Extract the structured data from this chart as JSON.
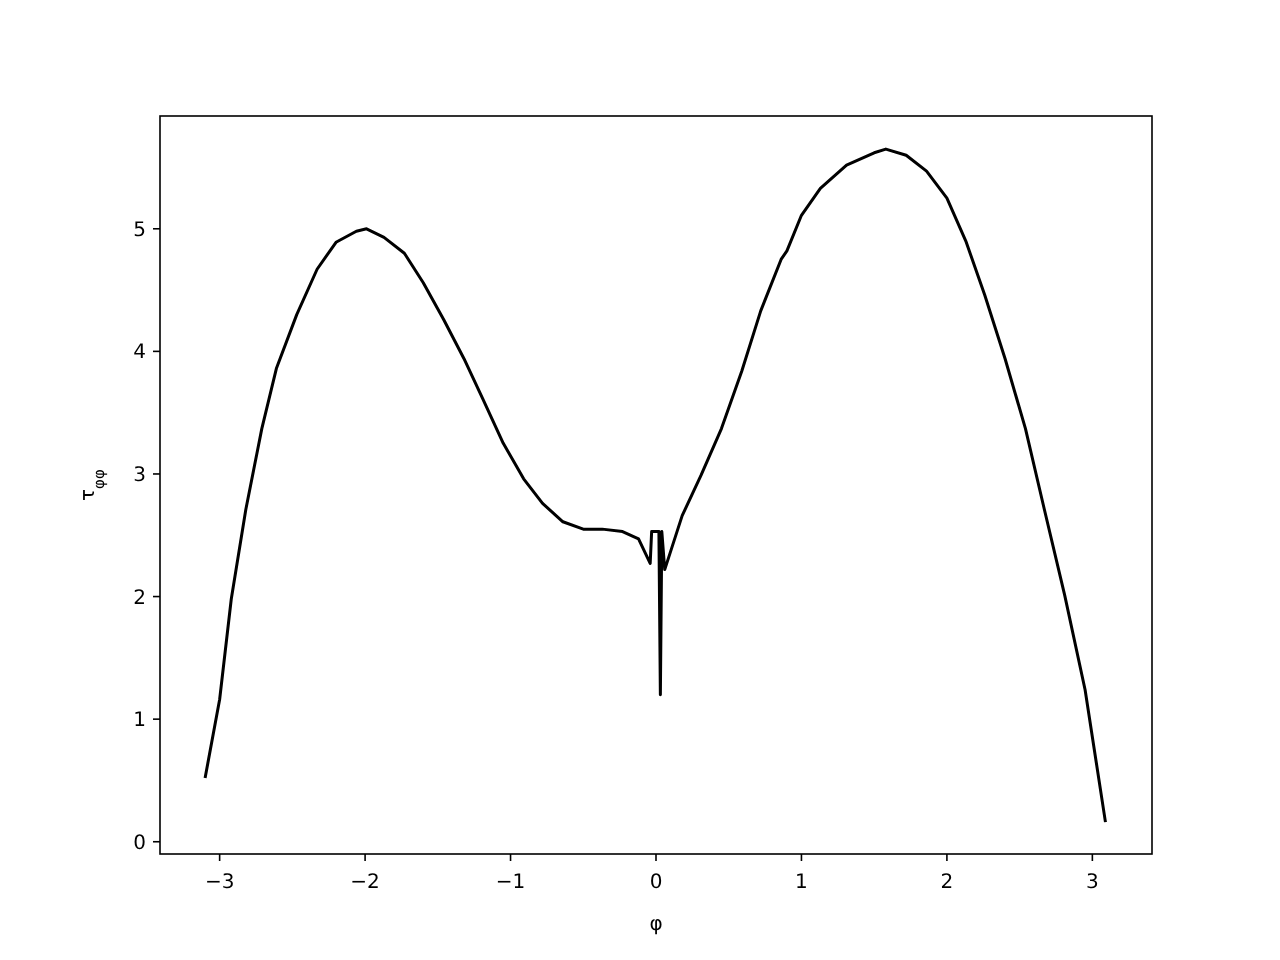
{
  "chart_data": {
    "type": "line",
    "xlabel": "φ",
    "ylabel": "τ$_{φφ}$",
    "xlim": [
      -3.41,
      3.41
    ],
    "ylim": [
      -0.1,
      5.92
    ],
    "xticks": [
      -3,
      -2,
      -1,
      0,
      1,
      2,
      3
    ],
    "yticks": [
      0,
      1,
      2,
      3,
      4,
      5
    ],
    "grid": false,
    "series": [
      {
        "color": "#000000",
        "x": [
          -3.1,
          -3.0,
          -2.92,
          -2.82,
          -2.71,
          -2.61,
          -2.47,
          -2.33,
          -2.2,
          -2.06,
          -1.99,
          -1.87,
          -1.73,
          -1.6,
          -1.46,
          -1.32,
          -1.19,
          -1.05,
          -0.91,
          -0.78,
          -0.64,
          -0.5,
          -0.37,
          -0.23,
          -0.12,
          -0.04,
          -0.03,
          0.02,
          0.03,
          0.04,
          0.06,
          0.18,
          0.31,
          0.45,
          0.59,
          0.72,
          0.86,
          0.9,
          1.0,
          1.13,
          1.31,
          1.5,
          1.58,
          1.72,
          1.86,
          2.0,
          2.13,
          2.26,
          2.4,
          2.54,
          2.67,
          2.81,
          2.95,
          3.09
        ],
        "values": [
          0.52,
          1.16,
          1.98,
          2.71,
          3.37,
          3.86,
          4.3,
          4.67,
          4.89,
          4.98,
          5.0,
          4.93,
          4.8,
          4.56,
          4.26,
          3.94,
          3.61,
          3.25,
          2.96,
          2.76,
          2.61,
          2.55,
          2.55,
          2.53,
          2.47,
          2.27,
          2.53,
          2.53,
          1.2,
          2.53,
          2.22,
          2.66,
          2.99,
          3.37,
          3.84,
          4.33,
          4.75,
          4.82,
          5.11,
          5.33,
          5.52,
          5.62,
          5.65,
          5.6,
          5.47,
          5.25,
          4.9,
          4.46,
          3.94,
          3.37,
          2.71,
          2.01,
          1.24,
          0.16
        ]
      }
    ]
  }
}
